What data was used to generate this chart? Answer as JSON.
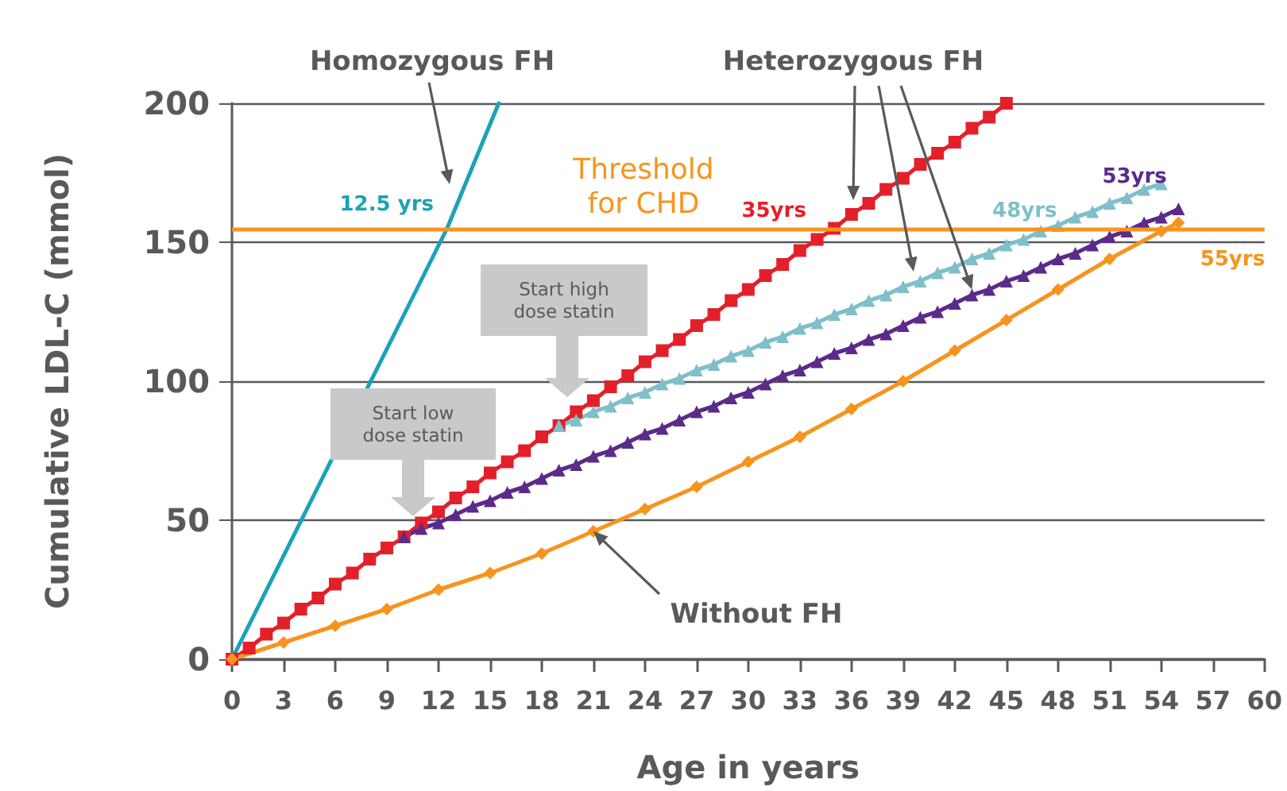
{
  "chart_data": {
    "type": "line",
    "xlabel": "Age in years",
    "ylabel": "Cumulative LDL-C (mmol)",
    "xlim": [
      0,
      60
    ],
    "xticks": [
      0,
      3,
      6,
      9,
      12,
      15,
      18,
      21,
      24,
      27,
      30,
      33,
      36,
      39,
      42,
      45,
      48,
      51,
      54,
      57,
      60
    ],
    "ylim": [
      0,
      200
    ],
    "yticks": [
      0,
      50,
      100,
      150,
      200
    ],
    "grid": "y",
    "series": [
      {
        "color": "#1ba3b5",
        "marker": "none",
        "x": [
          0,
          12.5,
          15.5
        ],
        "values": [
          0,
          155,
          200
        ]
      },
      {
        "color": "#e3202a",
        "marker": "square",
        "x": [
          0,
          1,
          2,
          3,
          4,
          5,
          6,
          7,
          8,
          9,
          10,
          11,
          12,
          13,
          14,
          15,
          16,
          17,
          18,
          19,
          20,
          21,
          22,
          23,
          24,
          25,
          26,
          27,
          28,
          29,
          30,
          31,
          32,
          33,
          34,
          35,
          36,
          37,
          38,
          39,
          40,
          41,
          42,
          43,
          44,
          45
        ],
        "values": [
          0,
          4,
          9,
          13,
          18,
          22,
          27,
          31,
          36,
          40,
          44,
          49,
          53,
          58,
          62,
          67,
          71,
          75,
          80,
          84,
          89,
          93,
          98,
          102,
          107,
          111,
          115,
          120,
          124,
          129,
          133,
          138,
          142,
          147,
          151,
          155,
          160,
          164,
          169,
          173,
          178,
          182,
          186,
          191,
          195,
          200
        ]
      },
      {
        "color": "#7fbfc9",
        "marker": "triangle",
        "x": [
          19,
          20,
          21,
          22,
          23,
          24,
          25,
          26,
          27,
          28,
          29,
          30,
          31,
          32,
          33,
          34,
          35,
          36,
          37,
          38,
          39,
          40,
          41,
          42,
          43,
          44,
          45,
          46,
          47,
          48,
          49,
          50,
          51,
          52,
          53,
          54
        ],
        "values": [
          84,
          86,
          89,
          91,
          94,
          96,
          99,
          101,
          104,
          106,
          109,
          111,
          114,
          116,
          119,
          121,
          124,
          126,
          129,
          131,
          134,
          136,
          139,
          141,
          144,
          146,
          149,
          151,
          154,
          156,
          159,
          161,
          164,
          166,
          169,
          171
        ]
      },
      {
        "color": "#5b2a8a",
        "marker": "triangle",
        "x": [
          10,
          11,
          12,
          13,
          14,
          15,
          16,
          17,
          18,
          19,
          20,
          21,
          22,
          23,
          24,
          25,
          26,
          27,
          28,
          29,
          30,
          31,
          32,
          33,
          34,
          35,
          36,
          37,
          38,
          39,
          40,
          41,
          42,
          43,
          44,
          45,
          46,
          47,
          48,
          49,
          50,
          51,
          52,
          53,
          54,
          55
        ],
        "values": [
          44,
          47,
          49,
          52,
          55,
          57,
          60,
          62,
          65,
          68,
          70,
          73,
          75,
          78,
          81,
          83,
          86,
          89,
          91,
          94,
          96,
          99,
          102,
          104,
          107,
          110,
          112,
          115,
          117,
          120,
          123,
          125,
          128,
          131,
          133,
          136,
          138,
          141,
          144,
          146,
          149,
          152,
          154,
          157,
          159,
          162
        ]
      },
      {
        "color": "#f7941d",
        "marker": "diamond",
        "x": [
          0,
          3,
          6,
          9,
          12,
          15,
          18,
          21,
          24,
          27,
          30,
          33,
          36,
          39,
          42,
          45,
          48,
          51,
          54,
          55
        ],
        "values": [
          0,
          6,
          12,
          18,
          25,
          31,
          38,
          46,
          54,
          62,
          71,
          80,
          90,
          100,
          111,
          122,
          133,
          144,
          154,
          157
        ]
      }
    ],
    "ref_lines": [
      {
        "axis": "y",
        "value": 155,
        "label": "Threshold for CHD",
        "color": "#f7941d"
      }
    ],
    "annotations": [
      "Homozygous FH",
      {
        "text": "Heterozygous FH",
        "x": 43,
        "y": 133
      },
      {
        "text": "Without FH",
        "x": 21,
        "y": 46
      },
      "Start low dose statin",
      "Start high dose statin",
      {
        "text": "12.5 yrs",
        "x": 12.5,
        "y": 155
      },
      {
        "text": "35yrs",
        "x": 35,
        "y": 155
      },
      {
        "text": "48yrs",
        "x": 48,
        "y": 155
      },
      {
        "text": "53yrs",
        "x": 53,
        "y": 157
      },
      {
        "text": "55yrs",
        "x": 55,
        "y": 157
      }
    ]
  }
}
